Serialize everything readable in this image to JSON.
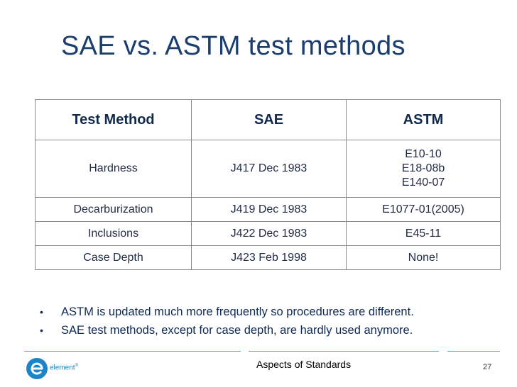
{
  "slide": {
    "title": "SAE vs. ASTM test methods",
    "table": {
      "headers": [
        "Test Method",
        "SAE",
        "ASTM"
      ],
      "rows": [
        {
          "method": "Hardness",
          "sae": "J417 Dec 1983",
          "astm": [
            "E10-10",
            "E18-08b",
            "E140-07"
          ]
        },
        {
          "method": "Decarburization",
          "sae": "J419 Dec 1983",
          "astm": [
            "E1077-01(2005)"
          ]
        },
        {
          "method": "Inclusions",
          "sae": "J422 Dec 1983",
          "astm": [
            "E45-11"
          ]
        },
        {
          "method": "Case Depth",
          "sae": "J423 Feb 1998",
          "astm": [
            "None!"
          ]
        }
      ]
    },
    "bullet_marker": "•",
    "bullets": [
      "ASTM is updated much more frequently so procedures are different.",
      "SAE test methods, except for case depth, are hardly used anymore."
    ]
  },
  "footer": {
    "brand": "element",
    "brand_mark": "®",
    "center_text": "Aspects of Standards",
    "page_number": "27"
  },
  "colors": {
    "title": "#1b3e6f",
    "accent": "#3aa0d8",
    "logo": "#1c85c8"
  }
}
